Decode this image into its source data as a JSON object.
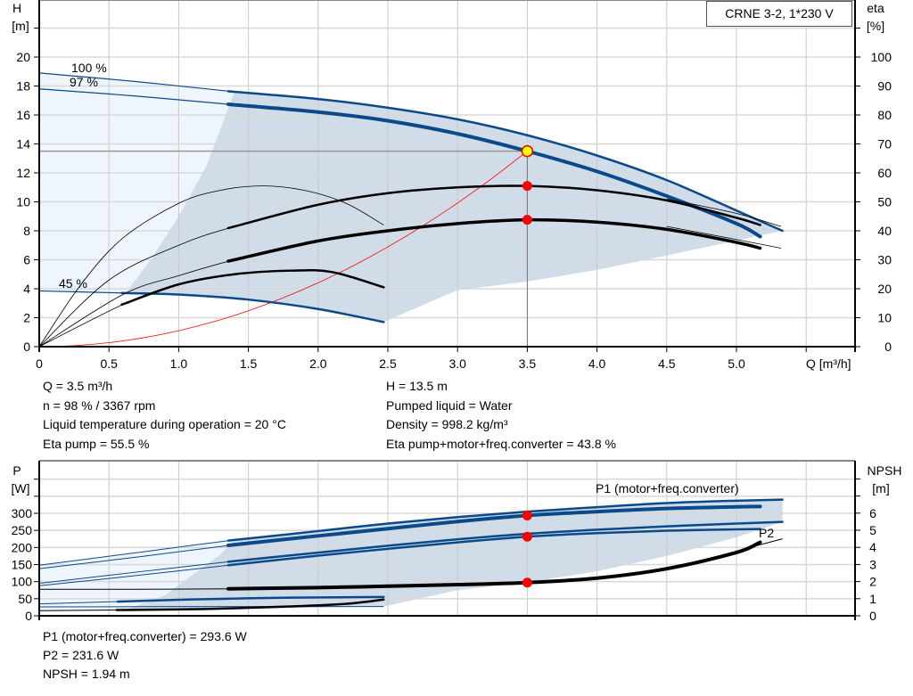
{
  "chart_data": [
    {
      "type": "line",
      "title": "CRNE 3-2, 1*230 V",
      "xlabel": "Q [m³/h]",
      "ylabel": "H",
      "ylabel_unit": "[m]",
      "y2label": "eta",
      "y2label_unit": "[%]",
      "xlim": [
        0,
        5.9
      ],
      "ylim": [
        0,
        24
      ],
      "y2lim": [
        0,
        120
      ],
      "xticks": [
        "0",
        "0.5",
        "1.0",
        "1.5",
        "2.0",
        "2.5",
        "3.0",
        "3.5",
        "4.0",
        "4.5",
        "5.0"
      ],
      "yticks": [
        "0",
        "2",
        "4",
        "6",
        "8",
        "10",
        "12",
        "14",
        "16",
        "18",
        "20"
      ],
      "y2ticks": [
        "0",
        "10",
        "20",
        "30",
        "40",
        "50",
        "60",
        "70",
        "80",
        "90",
        "100"
      ],
      "grid": true,
      "colors": {
        "head": "#0b4a8a",
        "eta": "#000000",
        "system": "#ff0000",
        "range_fill": "#d0dce8",
        "extended_fill": "#eef5fc",
        "duty_point": "#ffff00",
        "marker": "#ff0000"
      },
      "curve_labels": [
        "100 %",
        "97 %",
        "45 %"
      ],
      "series": [
        {
          "kind": "head",
          "speed": "100 %",
          "thick_from": 1.4,
          "points": [
            [
              0,
              18.9
            ],
            [
              0.7,
              18.3
            ],
            [
              1.4,
              17.6
            ],
            [
              2.0,
              17.1
            ],
            [
              2.5,
              16.5
            ],
            [
              3.0,
              15.7
            ],
            [
              3.5,
              14.6
            ],
            [
              4.0,
              13.2
            ],
            [
              4.5,
              11.5
            ],
            [
              5.0,
              9.4
            ],
            [
              5.33,
              8.0
            ]
          ]
        },
        {
          "kind": "head",
          "speed": "97 %",
          "thick_from": 1.4,
          "points": [
            [
              0,
              17.8
            ],
            [
              0.7,
              17.3
            ],
            [
              1.4,
              16.7
            ],
            [
              2.0,
              16.2
            ],
            [
              2.5,
              15.6
            ],
            [
              3.0,
              14.7
            ],
            [
              3.5,
              13.5
            ],
            [
              4.0,
              12.1
            ],
            [
              4.5,
              10.4
            ],
            [
              5.0,
              8.5
            ],
            [
              5.17,
              7.6
            ]
          ]
        },
        {
          "kind": "head",
          "speed": "45 %",
          "thick_from": 0.62,
          "points": [
            [
              0,
              3.85
            ],
            [
              0.62,
              3.7
            ],
            [
              1.0,
              3.6
            ],
            [
              1.5,
              3.25
            ],
            [
              2.0,
              2.6
            ],
            [
              2.47,
              1.7
            ]
          ]
        },
        {
          "kind": "eta",
          "speed": "100 %",
          "thick_from": 9,
          "points": [
            [
              0,
              0
            ],
            [
              0.3,
              4.3
            ],
            [
              0.6,
              7.5
            ],
            [
              1.0,
              9.9
            ],
            [
              1.3,
              10.8
            ],
            [
              1.6,
              11.1
            ],
            [
              1.9,
              10.8
            ],
            [
              2.2,
              9.9
            ],
            [
              2.47,
              8.4
            ]
          ]
        },
        {
          "kind": "eta",
          "speed": "97 %",
          "thick_from": 1.4,
          "points": [
            [
              0,
              0
            ],
            [
              0.5,
              4.6
            ],
            [
              1.0,
              7.0
            ],
            [
              1.4,
              8.3
            ],
            [
              2.0,
              9.8
            ],
            [
              2.5,
              10.6
            ],
            [
              3.0,
              11.0
            ],
            [
              3.5,
              11.1
            ],
            [
              4.0,
              10.8
            ],
            [
              4.5,
              10.1
            ],
            [
              5.0,
              8.9
            ],
            [
              5.17,
              8.4
            ]
          ]
        },
        {
          "kind": "eta",
          "speed": "100 % ext",
          "thick_from": 9,
          "points": [
            [
              4.5,
              10.2
            ],
            [
              5.0,
              9.2
            ],
            [
              5.32,
              8.3
            ]
          ]
        },
        {
          "kind": "eta",
          "speed": "97 % total",
          "thick_from": 1.4,
          "points": [
            [
              0,
              0
            ],
            [
              0.6,
              3.6
            ],
            [
              1.0,
              4.9
            ],
            [
              1.4,
              6.0
            ],
            [
              2.0,
              7.3
            ],
            [
              2.5,
              8.0
            ],
            [
              3.0,
              8.5
            ],
            [
              3.5,
              8.76
            ],
            [
              4.0,
              8.6
            ],
            [
              4.5,
              8.1
            ],
            [
              5.0,
              7.2
            ],
            [
              5.17,
              6.8
            ]
          ]
        },
        {
          "kind": "eta",
          "speed": "100 % total ext",
          "thick_from": 9,
          "points": [
            [
              4.5,
              8.3
            ],
            [
              5.0,
              7.4
            ],
            [
              5.32,
              6.8
            ]
          ]
        },
        {
          "kind": "eta",
          "speed": "45 %",
          "thick_from": 0.62,
          "points": [
            [
              0,
              0
            ],
            [
              0.62,
              3.0
            ],
            [
              1.0,
              4.3
            ],
            [
              1.4,
              5.0
            ],
            [
              1.8,
              5.25
            ],
            [
              2.1,
              5.15
            ],
            [
              2.47,
              4.1
            ]
          ]
        }
      ],
      "system_curve": {
        "h_at_duty": 13.5,
        "q_at_duty": 3.5
      },
      "duty_point": {
        "Q": 3.5,
        "H": 13.5
      },
      "markers": [
        {
          "Q": 3.5,
          "H": 11.1
        },
        {
          "Q": 3.5,
          "H": 8.76
        }
      ],
      "range_lower": [
        [
          5.33,
          8.0
        ],
        [
          4.5,
          6.3
        ],
        [
          4.0,
          5.3
        ],
        [
          3.5,
          4.5
        ],
        [
          3.0,
          3.9
        ],
        [
          2.47,
          1.7
        ]
      ],
      "range_left": [
        [
          0.62,
          3.7
        ],
        [
          0.8,
          6.0
        ],
        [
          1.0,
          9.0
        ],
        [
          1.2,
          12.5
        ],
        [
          1.4,
          17.6
        ]
      ]
    },
    {
      "type": "line",
      "ylabel": "P",
      "ylabel_unit": "[W]",
      "y2label": "NPSH",
      "y2label_unit": "[m]",
      "xlim": [
        0,
        5.9
      ],
      "ylim": [
        0,
        450
      ],
      "y2lim": [
        0,
        9
      ],
      "yticks": [
        "0",
        "50",
        "100",
        "150",
        "200",
        "250",
        "300"
      ],
      "y2ticks": [
        "0",
        "1",
        "2",
        "3",
        "4",
        "5",
        "6"
      ],
      "grid": true,
      "curve_labels": [
        "P1 (motor+freq.converter)",
        "P2"
      ],
      "series": [
        {
          "kind": "power",
          "thick_from": 1.4,
          "points": [
            [
              0,
              148
            ],
            [
              0.7,
              185
            ],
            [
              1.4,
              222
            ],
            [
              2.0,
              248
            ],
            [
              2.5,
              270
            ],
            [
              3.0,
              289
            ],
            [
              3.5,
              305
            ],
            [
              4.0,
              318
            ],
            [
              4.5,
              330
            ],
            [
              5.0,
              337
            ],
            [
              5.33,
              340
            ]
          ]
        },
        {
          "kind": "power",
          "thick_from": 1.4,
          "points": [
            [
              0,
              138
            ],
            [
              0.7,
              172
            ],
            [
              1.4,
              208
            ],
            [
              2.0,
              234
            ],
            [
              2.5,
              255
            ],
            [
              3.0,
              276
            ],
            [
              3.5,
              293.6
            ],
            [
              4.0,
              305
            ],
            [
              4.5,
              314
            ],
            [
              5.0,
              319
            ],
            [
              5.17,
              320
            ]
          ]
        },
        {
          "kind": "power",
          "thick_from": 1.4,
          "points": [
            [
              0,
              95
            ],
            [
              0.7,
              128
            ],
            [
              1.4,
              160
            ],
            [
              2.0,
              185
            ],
            [
              2.5,
              205
            ],
            [
              3.0,
              224
            ],
            [
              3.5,
              240
            ],
            [
              4.0,
              252
            ],
            [
              4.5,
              262
            ],
            [
              5.0,
              270
            ],
            [
              5.33,
              275
            ]
          ]
        },
        {
          "kind": "power",
          "thick_from": 1.4,
          "points": [
            [
              0,
              88
            ],
            [
              0.7,
              118
            ],
            [
              1.4,
              150
            ],
            [
              2.0,
              176
            ],
            [
              2.5,
              196
            ],
            [
              3.0,
              215
            ],
            [
              3.5,
              231.6
            ],
            [
              4.0,
              242
            ],
            [
              4.5,
              249
            ],
            [
              5.0,
              253
            ],
            [
              5.17,
              254
            ]
          ]
        },
        {
          "kind": "power",
          "thick_from": 0.6,
          "points": [
            [
              0,
              35
            ],
            [
              0.6,
              42
            ],
            [
              1.1,
              48
            ],
            [
              1.8,
              53
            ],
            [
              2.47,
              55
            ]
          ]
        },
        {
          "kind": "power",
          "thick_from": 9,
          "points": [
            [
              0,
              26
            ],
            [
              1.0,
              27
            ],
            [
              2.47,
              27
            ]
          ]
        },
        {
          "kind": "npsh",
          "thick_from": 1.4,
          "points": [
            [
              0,
              1.55
            ],
            [
              0.7,
              1.55
            ],
            [
              1.4,
              1.58
            ],
            [
              2.0,
              1.65
            ],
            [
              2.5,
              1.73
            ],
            [
              3.0,
              1.82
            ],
            [
              3.5,
              1.94
            ],
            [
              4.0,
              2.2
            ],
            [
              4.5,
              2.75
            ],
            [
              5.0,
              3.7
            ],
            [
              5.17,
              4.3
            ]
          ]
        },
        {
          "kind": "npsh",
          "thick_from": 9,
          "points": [
            [
              4.8,
              3.3
            ],
            [
              5.1,
              4.0
            ],
            [
              5.33,
              4.5
            ]
          ]
        },
        {
          "kind": "npsh",
          "thick_from": 0.6,
          "points": [
            [
              0,
              0.3
            ],
            [
              0.6,
              0.34
            ],
            [
              1.2,
              0.4
            ],
            [
              1.8,
              0.55
            ],
            [
              2.2,
              0.7
            ],
            [
              2.47,
              0.95
            ]
          ]
        }
      ],
      "markers": [
        {
          "Q": 3.5,
          "P": 293.6
        },
        {
          "Q": 3.5,
          "P": 231.6
        },
        {
          "Q": 3.5,
          "NPSH": 1.94
        }
      ],
      "range_upper": [
        [
          1.4,
          222
        ],
        [
          2.5,
          270
        ],
        [
          3.5,
          305
        ],
        [
          4.5,
          330
        ],
        [
          5.33,
          340
        ]
      ],
      "range_lower": [
        [
          5.33,
          275
        ],
        [
          5.0,
          230
        ],
        [
          4.5,
          175
        ],
        [
          4.0,
          130
        ],
        [
          3.5,
          98
        ],
        [
          3.0,
          75
        ],
        [
          2.47,
          27
        ]
      ],
      "range_left": [
        [
          0.6,
          15
        ],
        [
          0.9,
          60
        ],
        [
          1.1,
          120
        ],
        [
          1.3,
          180
        ],
        [
          1.4,
          222
        ]
      ],
      "ext_upper": [
        [
          0,
          148
        ],
        [
          1.4,
          222
        ]
      ],
      "ext_lower": [
        [
          0,
          10
        ],
        [
          0.6,
          15
        ]
      ]
    }
  ],
  "title_box": "CRNE 3-2, 1*230 V",
  "info_top": {
    "left": [
      "Q = 3.5 m³/h",
      "n = 98 % / 3367 rpm",
      "Liquid temperature during operation = 20 °C",
      "Eta pump = 55.5 %"
    ],
    "right": [
      "H = 13.5 m",
      "Pumped liquid = Water",
      "Density = 998.2 kg/m³",
      "Eta pump+motor+freq.converter = 43.8 %"
    ]
  },
  "info_bottom": [
    "P1 (motor+freq.converter) = 293.6 W",
    "P2 = 231.6 W",
    "NPSH = 1.94 m"
  ]
}
